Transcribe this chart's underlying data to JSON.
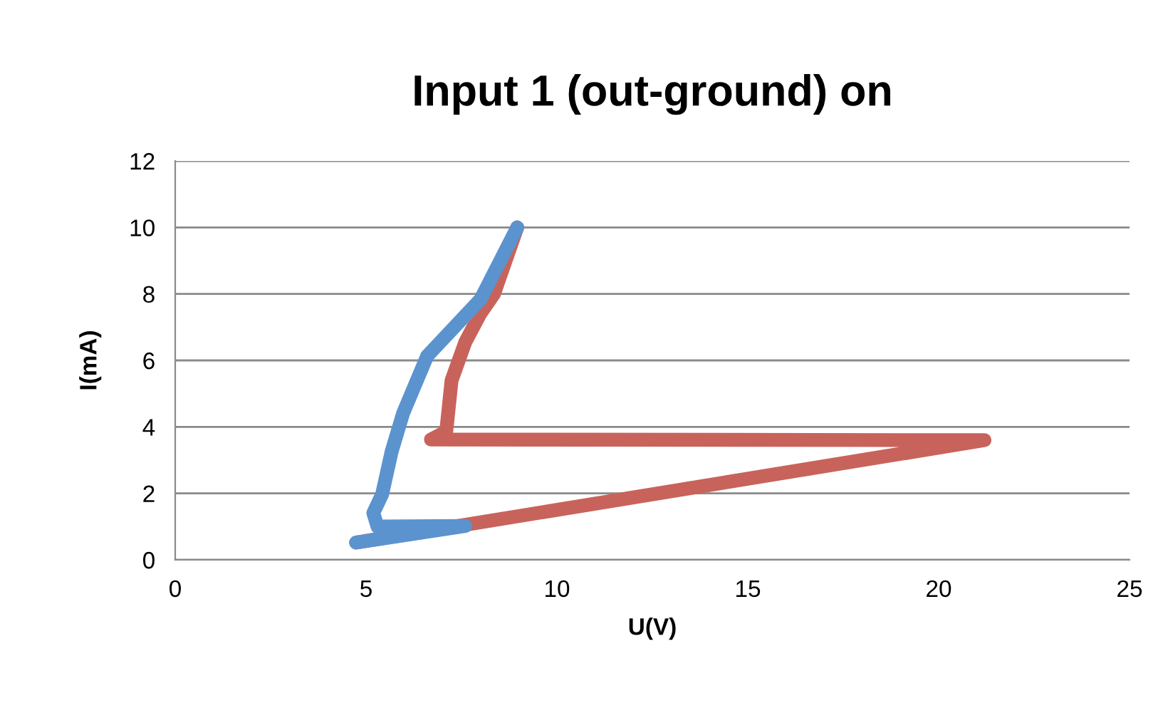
{
  "chart_data": {
    "type": "line",
    "title": "Input 1 (out-ground) on",
    "xlabel": "U(V)",
    "ylabel": "I(mA)",
    "series": [
      {
        "color": "#c8635b",
        "x": [
          4.74,
          21.2,
          6.7,
          7.1,
          7.24,
          7.6,
          7.99,
          8.35,
          8.96
        ],
        "values": [
          0.52,
          3.6,
          3.62,
          3.86,
          5.4,
          6.55,
          7.4,
          8.0,
          10.0
        ]
      },
      {
        "color": "#5b93cf",
        "x": [
          8.96,
          8.0,
          6.6,
          5.97,
          5.67,
          5.42,
          5.19,
          5.3,
          7.6,
          4.74
        ],
        "values": [
          10.0,
          7.84,
          6.13,
          4.41,
          3.26,
          1.97,
          1.41,
          1.0,
          1.02,
          0.52
        ]
      }
    ],
    "xlim": [
      0,
      25
    ],
    "xticks": [
      0,
      5,
      10,
      15,
      20,
      25
    ],
    "ylim": [
      0,
      12
    ],
    "yticks": [
      0,
      2,
      4,
      6,
      8,
      10,
      12
    ],
    "grid": "y",
    "marker": "none",
    "line_style": "solid",
    "legend": false
  }
}
